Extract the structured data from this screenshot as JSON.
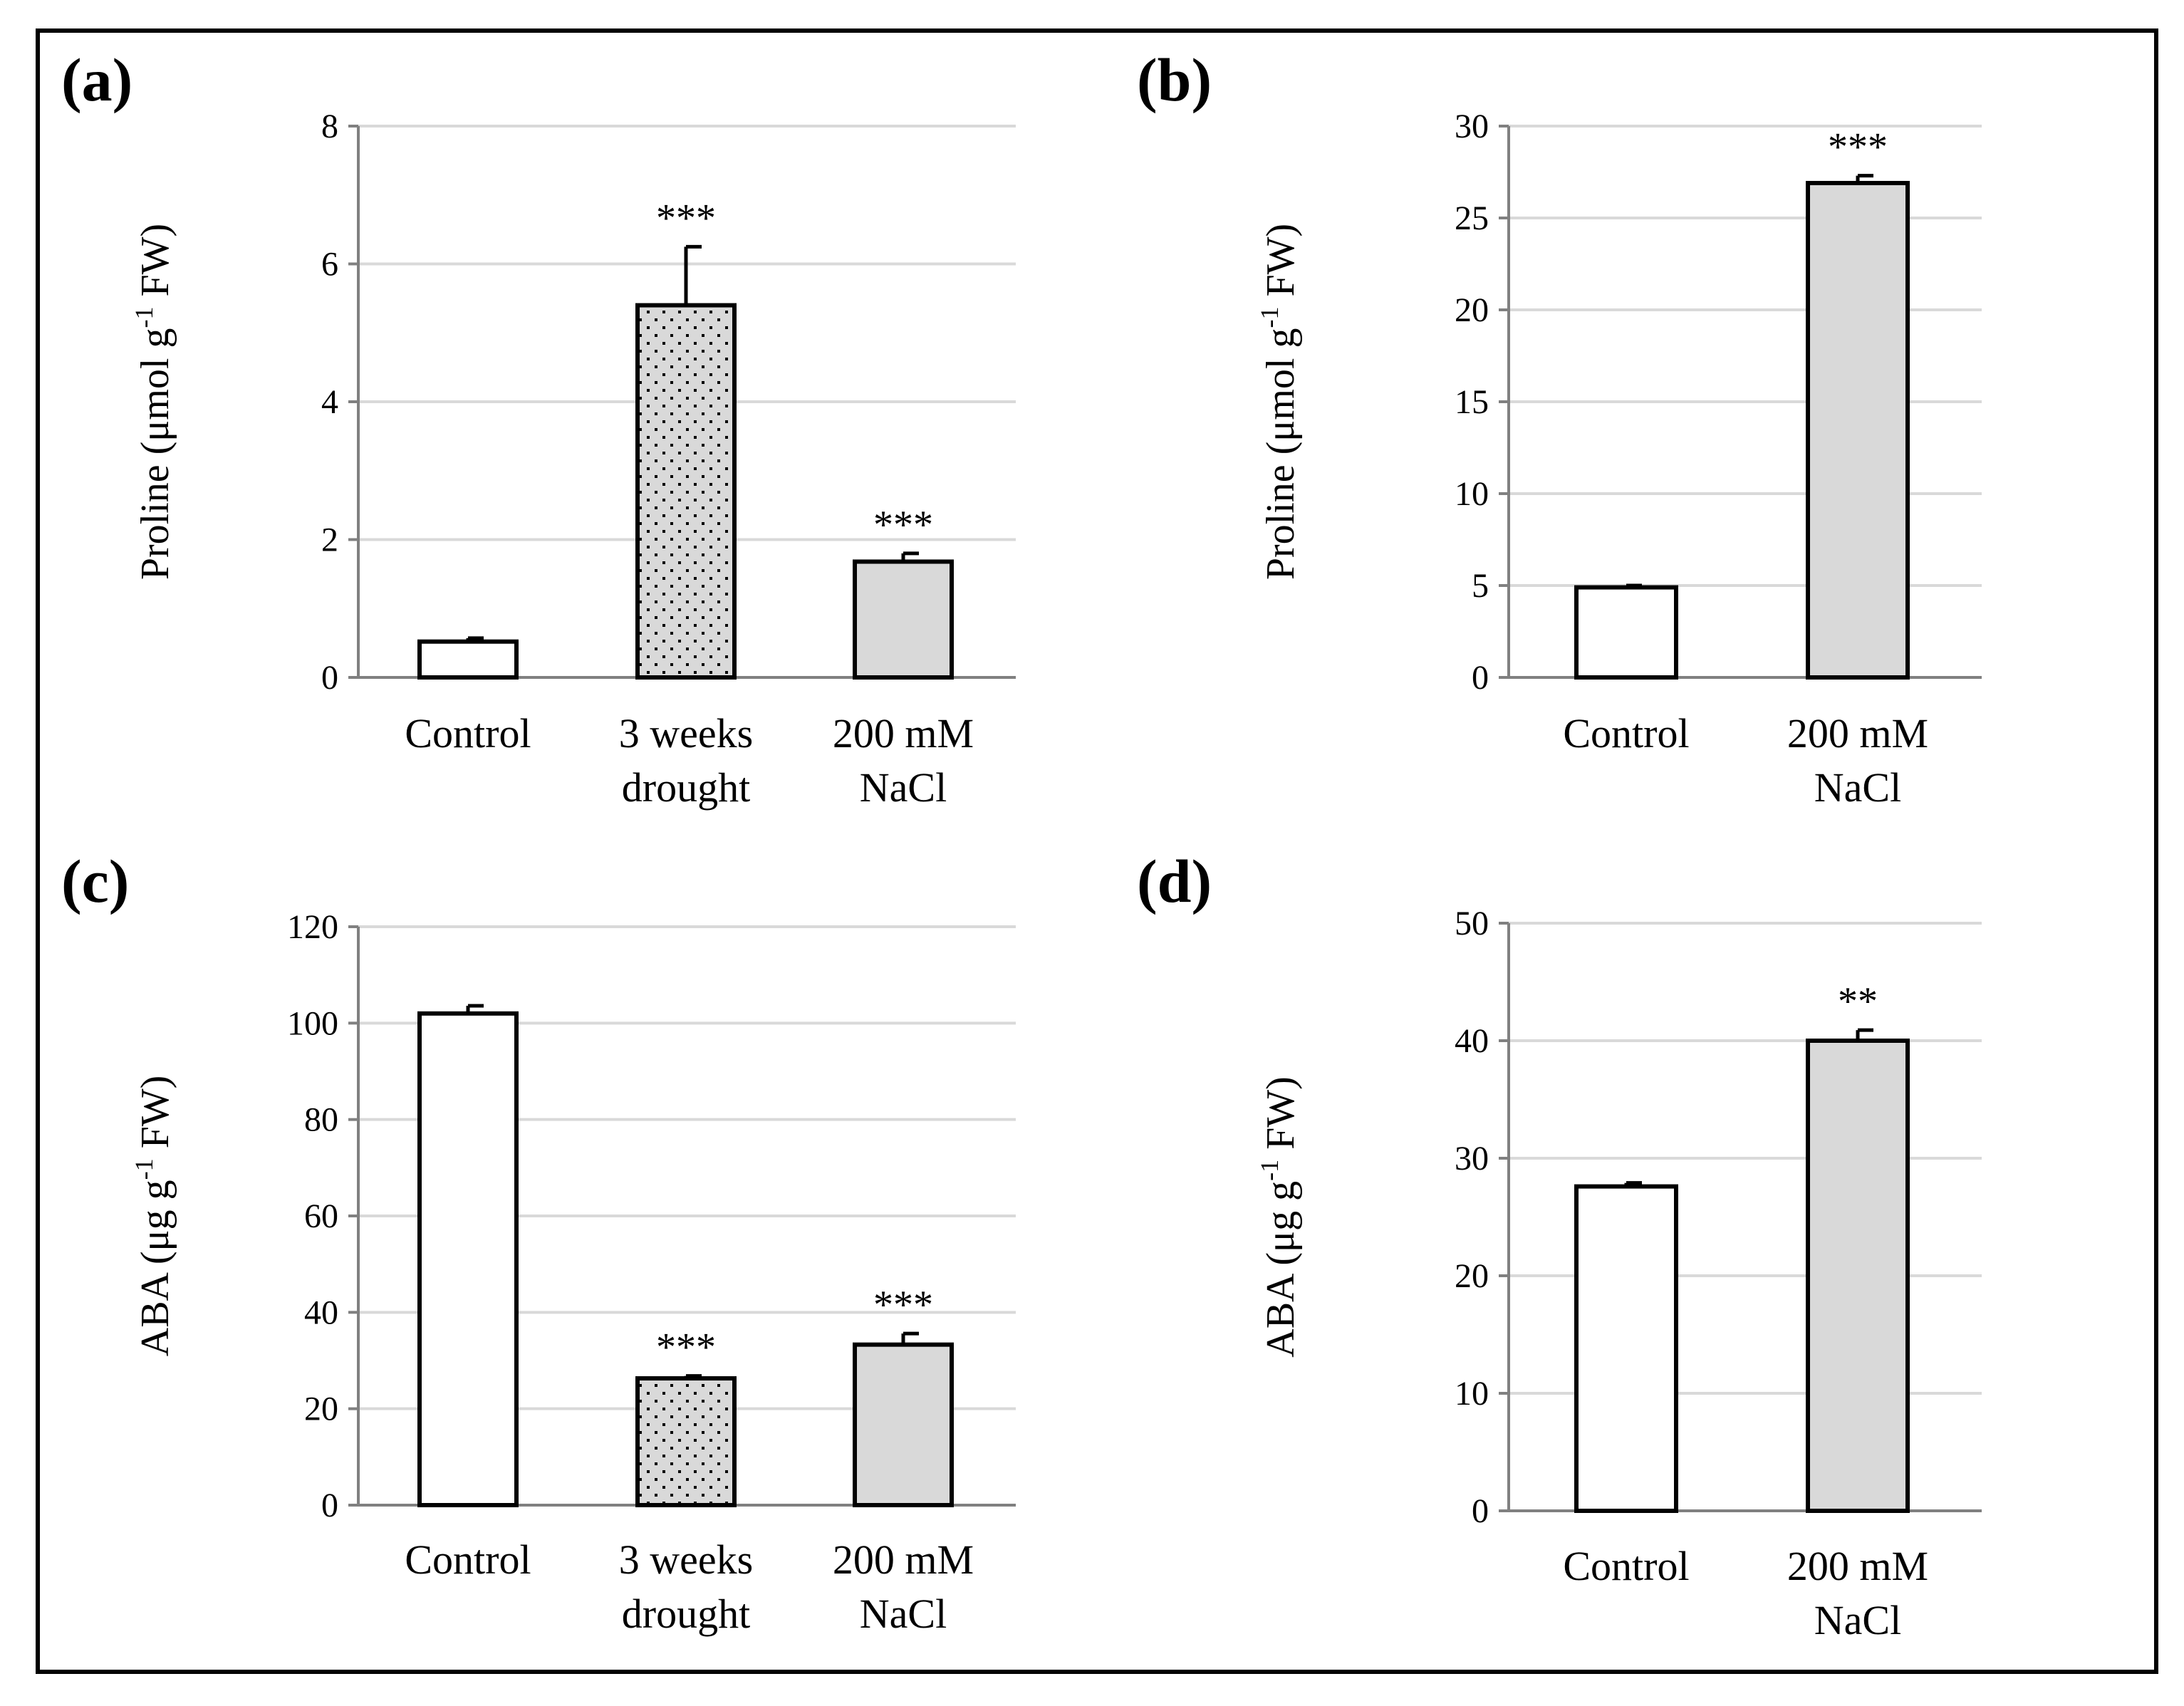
{
  "chart_data": [
    {
      "type": "bar",
      "panel_label": "(a)",
      "categories": [
        [
          "Control"
        ],
        [
          "3 weeks",
          "drought"
        ],
        [
          "200 mM",
          "NaCl"
        ]
      ],
      "values": [
        0.52,
        5.4,
        1.68
      ],
      "errors": [
        0.05,
        0.85,
        0.12
      ],
      "significance": [
        "",
        "***",
        "***"
      ],
      "fills": [
        "white",
        "dotted",
        "gray"
      ],
      "ylabel_parts": [
        "Proline (μmol g",
        "-1",
        " FW)"
      ],
      "ylim": [
        0,
        8
      ],
      "ticks": [
        0,
        2,
        4,
        6,
        8
      ],
      "grid": true,
      "xlabel": ""
    },
    {
      "type": "bar",
      "panel_label": "(b)",
      "categories": [
        [
          "Control"
        ],
        [
          "200 mM",
          "NaCl"
        ]
      ],
      "values": [
        4.9,
        26.9
      ],
      "errors": [
        0.1,
        0.4
      ],
      "significance": [
        "",
        "***"
      ],
      "fills": [
        "white",
        "gray"
      ],
      "ylabel_parts": [
        "Proline (μmol g",
        "-1",
        " FW)"
      ],
      "ylim": [
        0,
        30
      ],
      "ticks": [
        0,
        5,
        10,
        15,
        20,
        25,
        30
      ],
      "grid": true,
      "xlabel": ""
    },
    {
      "type": "bar",
      "panel_label": "(c)",
      "categories": [
        [
          "Control"
        ],
        [
          "3 weeks",
          "drought"
        ],
        [
          "200 mM",
          "NaCl"
        ]
      ],
      "values": [
        102,
        26.3,
        33.3
      ],
      "errors": [
        1.6,
        0.5,
        2.3
      ],
      "significance": [
        "",
        "***",
        "***"
      ],
      "fills": [
        "white",
        "dotted",
        "gray"
      ],
      "ylabel_parts": [
        "ABA (μg g",
        "-1",
        " FW)"
      ],
      "ylim": [
        0,
        120
      ],
      "ticks": [
        0,
        20,
        40,
        60,
        80,
        100,
        120
      ],
      "grid": true,
      "xlabel": ""
    },
    {
      "type": "bar",
      "panel_label": "(d)",
      "categories": [
        [
          "Control"
        ],
        [
          "200 mM",
          "NaCl"
        ]
      ],
      "values": [
        27.6,
        40
      ],
      "errors": [
        0.3,
        0.9
      ],
      "significance": [
        "",
        "**"
      ],
      "fills": [
        "white",
        "gray"
      ],
      "ylabel_parts": [
        "ABA (μg g",
        "-1",
        " FW)"
      ],
      "ylim": [
        0,
        50
      ],
      "ticks": [
        0,
        10,
        20,
        30,
        40,
        50
      ],
      "grid": true,
      "xlabel": ""
    }
  ],
  "colors": {
    "gray_fill": "#d9d9d9",
    "white_fill": "#ffffff",
    "grid": "#d9d9d9",
    "axis": "#808080",
    "bar_edge": "#000000",
    "dot": "#000000"
  }
}
